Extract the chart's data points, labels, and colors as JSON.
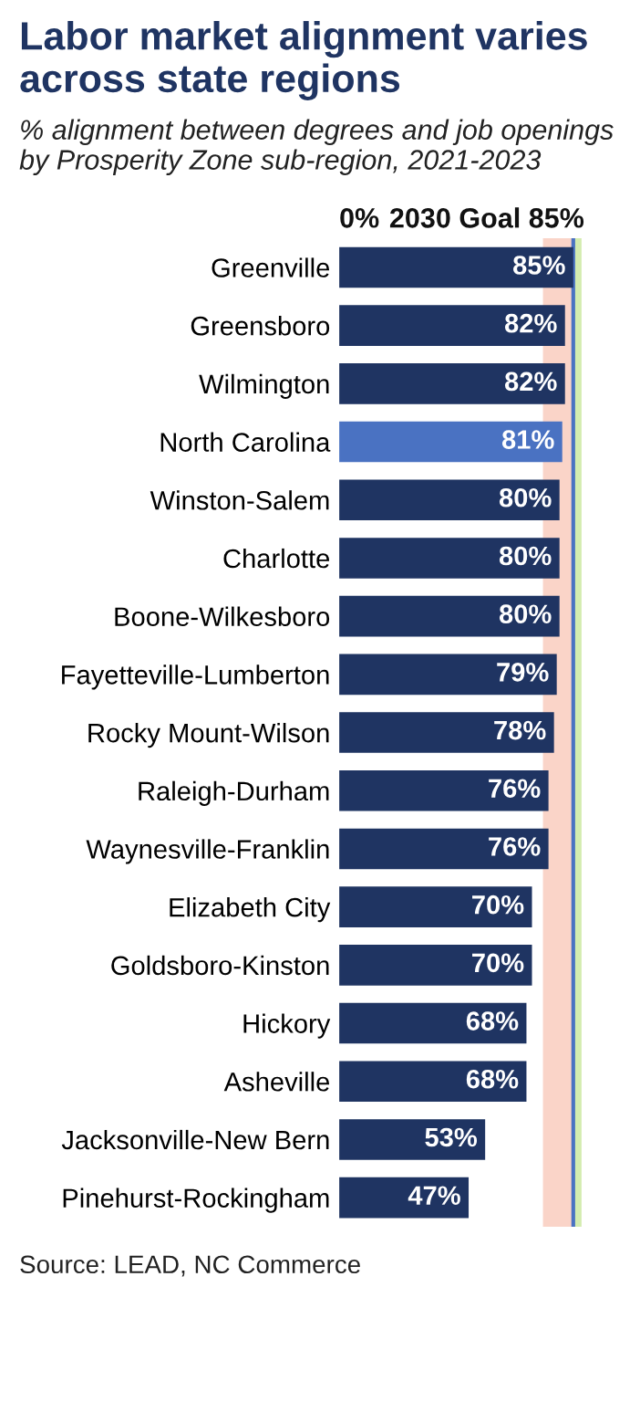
{
  "chart_data": {
    "type": "bar",
    "orientation": "horizontal",
    "title": "Labor market alignment varies across state regions",
    "subtitle": "% alignment between degrees and job openings by Prosperity Zone sub-region, 2021-2023",
    "categories": [
      "Greenville",
      "Greensboro",
      "Wilmington",
      "North Carolina",
      "Winston-Salem",
      "Charlotte",
      "Boone-Wilkesboro",
      "Fayetteville-Lumberton",
      "Rocky Mount-Wilson",
      "Raleigh-Durham",
      "Waynesville-Franklin",
      "Elizabeth City",
      "Goldsboro-Kinston",
      "Hickory",
      "Asheville",
      "Jacksonville-New Bern",
      "Pinehurst-Rockingham"
    ],
    "values": [
      85,
      82,
      82,
      81,
      80,
      80,
      80,
      79,
      78,
      76,
      76,
      70,
      70,
      68,
      68,
      53,
      47
    ],
    "value_labels": [
      "85%",
      "82%",
      "82%",
      "81%",
      "80%",
      "80%",
      "80%",
      "79%",
      "78%",
      "76%",
      "76%",
      "70%",
      "70%",
      "68%",
      "68%",
      "53%",
      "47%"
    ],
    "colors": [
      "#1f3462",
      "#1f3462",
      "#1f3462",
      "#4a72c2",
      "#1f3462",
      "#1f3462",
      "#1f3462",
      "#1f3462",
      "#1f3462",
      "#1f3462",
      "#1f3462",
      "#1f3462",
      "#1f3462",
      "#1f3462",
      "#1f3462",
      "#1f3462",
      "#1f3462"
    ],
    "ref_lines": [
      {
        "axis": "x",
        "value": 85,
        "label": "2030 Goal 85%",
        "color": "#4a72c2"
      }
    ],
    "bands": [
      {
        "axis": "x",
        "from": 74,
        "to": 85,
        "color": "#f7b7a3"
      },
      {
        "axis": "x",
        "from": 85,
        "to": 88,
        "color": "#b8e07a"
      }
    ],
    "grid": false,
    "legend": false,
    "annotations": [
      "0%",
      "Source: LEAD, NC Commerce"
    ]
  }
}
